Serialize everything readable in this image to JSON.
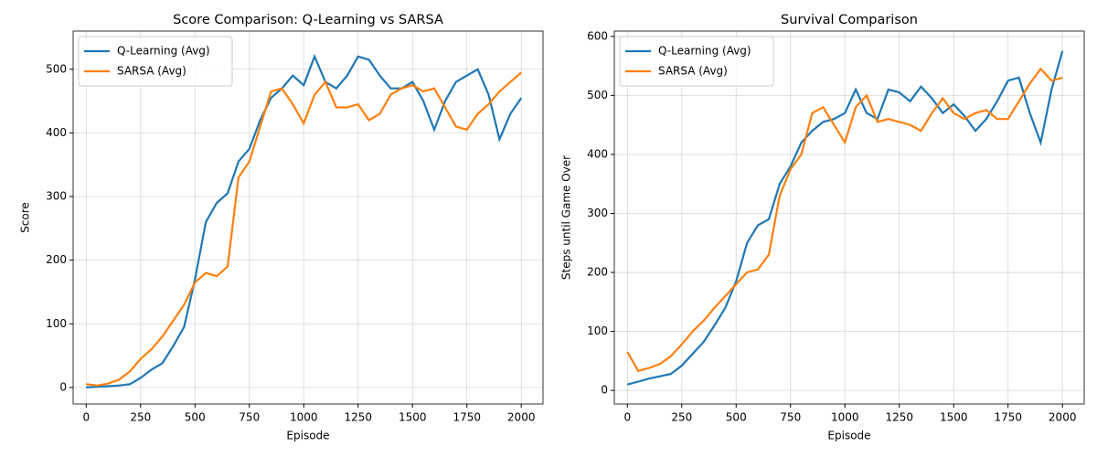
{
  "chart_data": [
    {
      "type": "line",
      "title": "Score Comparison: Q-Learning vs SARSA",
      "x_label": "Episode",
      "y_label": "Score",
      "x": [
        0,
        50,
        100,
        150,
        200,
        250,
        300,
        350,
        400,
        450,
        500,
        550,
        600,
        650,
        700,
        750,
        800,
        850,
        900,
        950,
        1000,
        1050,
        1100,
        1150,
        1200,
        1250,
        1300,
        1350,
        1400,
        1450,
        1500,
        1550,
        1600,
        1650,
        1700,
        1750,
        1800,
        1850,
        1900,
        1950,
        2000
      ],
      "series": [
        {
          "name": "Q-Learning (Avg)",
          "color": "#1f77b4",
          "values": [
            0,
            1,
            2,
            3,
            5,
            15,
            28,
            38,
            65,
            95,
            170,
            260,
            290,
            305,
            355,
            375,
            420,
            455,
            470,
            490,
            475,
            520,
            480,
            470,
            490,
            520,
            515,
            490,
            470,
            470,
            480,
            450,
            405,
            450,
            480,
            490,
            500,
            460,
            390,
            430,
            455
          ]
        },
        {
          "name": "SARSA (Avg)",
          "color": "#ff7f0e",
          "values": [
            5,
            3,
            6,
            12,
            25,
            45,
            60,
            80,
            105,
            130,
            165,
            180,
            175,
            190,
            330,
            355,
            410,
            465,
            470,
            445,
            415,
            460,
            480,
            440,
            440,
            445,
            420,
            430,
            460,
            470,
            475,
            465,
            470,
            440,
            410,
            405,
            430,
            445,
            465,
            480,
            495
          ]
        }
      ],
      "xlim": [
        -60,
        2100
      ],
      "xticks": [
        0,
        250,
        500,
        750,
        1000,
        1250,
        1500,
        1750,
        2000
      ],
      "ylim": [
        -26,
        560
      ],
      "yticks": [
        0,
        100,
        200,
        300,
        400,
        500
      ],
      "grid": true,
      "legend": "upper-left"
    },
    {
      "type": "line",
      "title": "Survival Comparison",
      "x_label": "Episode",
      "y_label": "Steps until Game Over",
      "x": [
        0,
        50,
        100,
        150,
        200,
        250,
        300,
        350,
        400,
        450,
        500,
        550,
        600,
        650,
        700,
        750,
        800,
        850,
        900,
        950,
        1000,
        1050,
        1100,
        1150,
        1200,
        1250,
        1300,
        1350,
        1400,
        1450,
        1500,
        1550,
        1600,
        1650,
        1700,
        1750,
        1800,
        1850,
        1900,
        1950,
        2000
      ],
      "series": [
        {
          "name": "Q-Learning (Avg)",
          "color": "#1f77b4",
          "values": [
            10,
            15,
            20,
            24,
            28,
            42,
            62,
            82,
            110,
            140,
            185,
            250,
            280,
            290,
            350,
            380,
            420,
            440,
            455,
            460,
            470,
            510,
            470,
            460,
            510,
            505,
            490,
            515,
            495,
            470,
            485,
            465,
            440,
            460,
            490,
            525,
            530,
            470,
            420,
            510,
            575
          ]
        },
        {
          "name": "SARSA (Avg)",
          "color": "#ff7f0e",
          "values": [
            65,
            33,
            38,
            45,
            58,
            78,
            100,
            118,
            140,
            160,
            180,
            200,
            205,
            230,
            330,
            375,
            400,
            470,
            480,
            450,
            420,
            480,
            500,
            455,
            460,
            455,
            450,
            440,
            470,
            495,
            470,
            460,
            470,
            475,
            460,
            460,
            490,
            520,
            545,
            525,
            530
          ]
        }
      ],
      "xlim": [
        -60,
        2100
      ],
      "xticks": [
        0,
        250,
        500,
        750,
        1000,
        1250,
        1500,
        1750,
        2000
      ],
      "ylim": [
        -23,
        609
      ],
      "yticks": [
        0,
        100,
        200,
        300,
        400,
        500,
        600
      ],
      "grid": true,
      "legend": "upper-left"
    }
  ]
}
